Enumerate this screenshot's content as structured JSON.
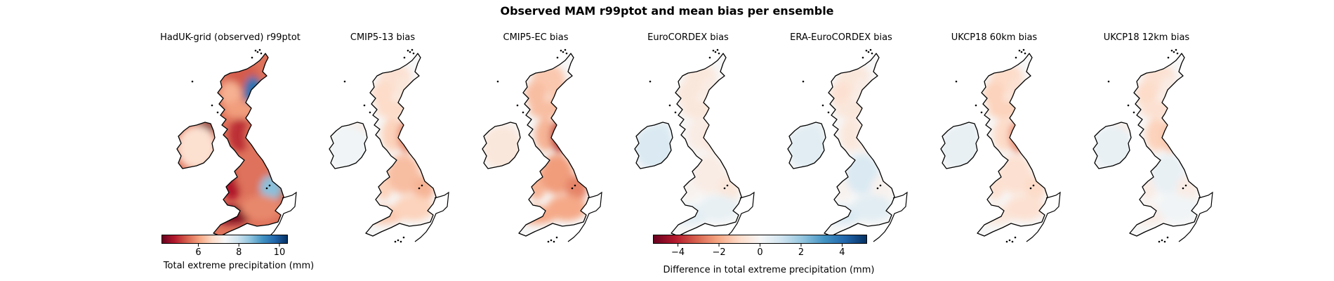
{
  "figure": {
    "title": "Observed MAM r99ptot and mean bias per ensemble"
  },
  "panels": [
    {
      "id": "hadukgrid",
      "title": "HadUK-grid (observed) r99ptot",
      "kind": "observed",
      "regions": {
        "scotland_north": 5.4,
        "scotland_east": 9.6,
        "scotland_west": 6.2,
        "central_belt": 6.0,
        "northern_ireland": 3.8,
        "ireland": 6.8,
        "northwest_england": 5.0,
        "northeast_england": 5.6,
        "wales": 4.8,
        "midlands": 5.6,
        "east_anglia": 8.6,
        "southwest": 4.4,
        "southeast": 5.8
      }
    },
    {
      "id": "cmip5_13",
      "title": "CMIP5-13 bias",
      "kind": "bias",
      "regions": {
        "scotland_north": -0.8,
        "scotland_east": -0.6,
        "scotland_west": -1.0,
        "central_belt": -1.0,
        "northern_ireland": -0.4,
        "ireland": 0.2,
        "northwest_england": -1.2,
        "northeast_england": -2.4,
        "wales": -1.2,
        "midlands": -1.6,
        "east_anglia": -1.8,
        "southwest": -1.4,
        "southeast": -1.2
      }
    },
    {
      "id": "cmip5_ec",
      "title": "CMIP5-EC bias",
      "kind": "bias",
      "regions": {
        "scotland_north": -1.4,
        "scotland_east": -1.4,
        "scotland_west": -1.6,
        "central_belt": -1.6,
        "northern_ireland": -0.2,
        "ireland": -0.6,
        "northwest_england": -1.8,
        "northeast_england": -3.6,
        "wales": -1.8,
        "midlands": -2.2,
        "east_anglia": -2.6,
        "southwest": -2.0,
        "southeast": -2.0
      }
    },
    {
      "id": "eurocordex",
      "title": "EuroCORDEX bias",
      "kind": "bias",
      "regions": {
        "scotland_north": -0.6,
        "scotland_east": -0.4,
        "scotland_west": -0.6,
        "central_belt": -0.6,
        "northern_ireland": 0.6,
        "ireland": 0.8,
        "northwest_england": -0.4,
        "northeast_england": -0.6,
        "wales": -0.2,
        "midlands": -0.4,
        "east_anglia": -0.6,
        "southwest": 0.6,
        "southeast": 0.4
      }
    },
    {
      "id": "era_eurocordex",
      "title": "ERA-EuroCORDEX bias",
      "kind": "bias",
      "regions": {
        "scotland_north": -0.6,
        "scotland_east": -0.4,
        "scotland_west": -0.8,
        "central_belt": -0.6,
        "northern_ireland": 0.4,
        "ireland": 0.6,
        "northwest_england": -0.6,
        "northeast_england": -0.4,
        "wales": -0.2,
        "midlands": 0.8,
        "east_anglia": -0.2,
        "southwest": 0.8,
        "southeast": 0.6
      }
    },
    {
      "id": "ukcp18_60km",
      "title": "UKCP18 60km bias",
      "kind": "bias",
      "regions": {
        "scotland_north": -1.0,
        "scotland_east": -0.8,
        "scotland_west": -1.2,
        "central_belt": -1.2,
        "northern_ireland": 0.4,
        "ireland": 0.4,
        "northwest_england": -1.0,
        "northeast_england": -2.4,
        "wales": -0.8,
        "midlands": -0.8,
        "east_anglia": -1.0,
        "southwest": -0.6,
        "southeast": -0.8
      }
    },
    {
      "id": "ukcp18_12km",
      "title": "UKCP18 12km bias",
      "kind": "bias",
      "regions": {
        "scotland_north": -0.8,
        "scotland_east": -0.4,
        "scotland_west": -1.0,
        "central_belt": -0.8,
        "northern_ireland": -0.4,
        "ireland": 0.4,
        "northwest_england": -1.2,
        "northeast_england": -1.4,
        "wales": -0.4,
        "midlands": 0.4,
        "east_anglia": -0.4,
        "southwest": -0.4,
        "southeast": 0.2
      }
    }
  ],
  "colorbars": {
    "observed": {
      "label": "Total extreme precipitation (mm)",
      "range": [
        4.2,
        10.4
      ],
      "ticks": [
        "6",
        "8",
        "10"
      ],
      "tick_values": [
        6,
        8,
        10
      ]
    },
    "bias": {
      "label": "Difference in total extreme precipitation (mm)",
      "range": [
        -5.2,
        5.2
      ],
      "ticks": [
        "−4",
        "−2",
        "0",
        "2",
        "4"
      ],
      "tick_values": [
        -4,
        -2,
        0,
        2,
        4
      ]
    }
  },
  "colormap": {
    "name": "RdBu",
    "stops": [
      "#67001f",
      "#b2182b",
      "#d6604d",
      "#f4a582",
      "#fddbc7",
      "#f7f7f7",
      "#d1e5f0",
      "#92c5de",
      "#4393c3",
      "#2166ac",
      "#053061"
    ]
  },
  "coastline_color": "#000000"
}
